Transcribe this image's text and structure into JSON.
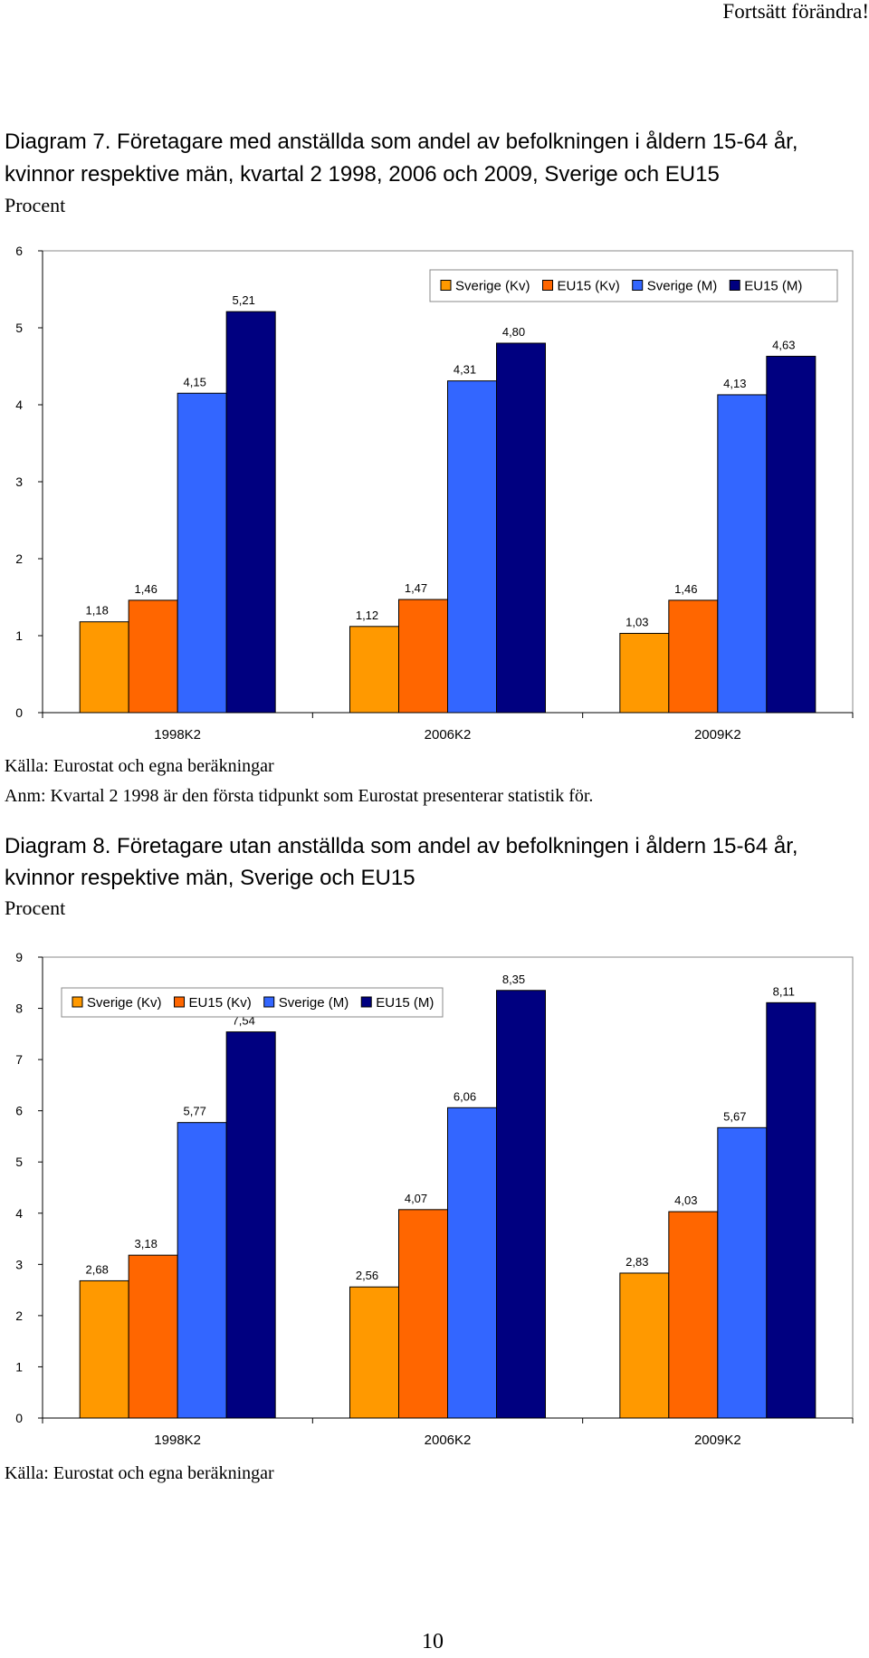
{
  "page": {
    "running_header": "Fortsätt förändra!",
    "page_number": "10"
  },
  "diagram7": {
    "title_line1": "Diagram 7. Företagare med anställda som andel av befolkningen i åldern 15-64 år,",
    "title_line2": "kvinnor respektive män, kvartal 2 1998, 2006 och 2009, Sverige och EU15",
    "unit": "Procent",
    "source": "Källa: Eurostat och egna beräkningar",
    "note": "Anm: Kvartal 2 1998 är den första tidpunkt som Eurostat presenterar statistik för."
  },
  "diagram8": {
    "title_line1": "Diagram 8. Företagare utan anställda som andel av befolkningen i åldern 15-64 år,",
    "title_line2": "kvinnor respektive män, Sverige och EU15",
    "unit": "Procent",
    "source": "Källa: Eurostat och egna beräkningar"
  },
  "chart_data": [
    {
      "type": "bar",
      "title": "",
      "xlabel": "",
      "ylabel": "",
      "categories": [
        "1998K2",
        "2006K2",
        "2009K2"
      ],
      "series": [
        {
          "name": "Sverige (Kv)",
          "color": "#FF9900",
          "values": [
            1.18,
            1.12,
            1.03
          ],
          "labels": [
            "1,18",
            "1,12",
            "1,03"
          ]
        },
        {
          "name": "EU15 (Kv)",
          "color": "#FF6600",
          "values": [
            1.46,
            1.47,
            1.46
          ],
          "labels": [
            "1,46",
            "1,47",
            "1,46"
          ]
        },
        {
          "name": "Sverige (M)",
          "color": "#3366FF",
          "values": [
            4.15,
            4.31,
            4.13
          ],
          "labels": [
            "4,15",
            "4,31",
            "4,13"
          ]
        },
        {
          "name": "EU15 (M)",
          "color": "#000080",
          "values": [
            5.21,
            4.8,
            4.63
          ],
          "labels": [
            "5,21",
            "4,80",
            "4,63"
          ]
        }
      ],
      "ylim": [
        0,
        6
      ],
      "yticks": [
        "0",
        "1",
        "2",
        "3",
        "4",
        "5",
        "6"
      ],
      "grid": false,
      "legend_position": "top-right"
    },
    {
      "type": "bar",
      "title": "",
      "xlabel": "",
      "ylabel": "",
      "categories": [
        "1998K2",
        "2006K2",
        "2009K2"
      ],
      "series": [
        {
          "name": "Sverige (Kv)",
          "color": "#FF9900",
          "values": [
            2.68,
            2.56,
            2.83
          ],
          "labels": [
            "2,68",
            "2,56",
            "2,83"
          ]
        },
        {
          "name": "EU15 (Kv)",
          "color": "#FF6600",
          "values": [
            3.18,
            4.07,
            4.03
          ],
          "labels": [
            "3,18",
            "4,07",
            "4,03"
          ]
        },
        {
          "name": "Sverige (M)",
          "color": "#3366FF",
          "values": [
            5.77,
            6.06,
            5.67
          ],
          "labels": [
            "5,77",
            "6,06",
            "5,67"
          ]
        },
        {
          "name": "EU15 (M)",
          "color": "#000080",
          "values": [
            7.54,
            8.35,
            8.11
          ],
          "labels": [
            "7,54",
            "8,35",
            "8,11"
          ]
        }
      ],
      "ylim": [
        0,
        9
      ],
      "yticks": [
        "0",
        "1",
        "2",
        "3",
        "4",
        "5",
        "6",
        "7",
        "8",
        "9"
      ],
      "grid": false,
      "legend_position": "top-left"
    }
  ]
}
